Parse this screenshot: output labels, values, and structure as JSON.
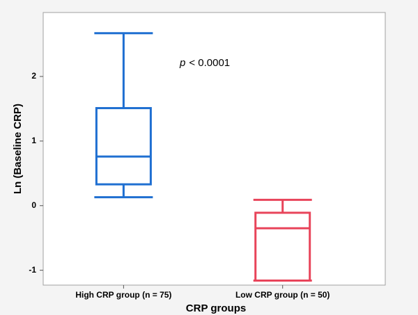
{
  "chart_data": {
    "type": "box",
    "annotation": [
      "p",
      "< 0.0001"
    ],
    "xlabel": "CRP groups",
    "ylabel": "Ln (Baseline CRP)",
    "categories": [
      "High CRP group (n = 75)",
      "Low CRP group (n = 50)"
    ],
    "boxes": [
      {
        "min": 0.13,
        "q1": 0.33,
        "median": 0.76,
        "q3": 1.51,
        "max": 2.67,
        "color": "#1f6fd1"
      },
      {
        "min": -1.16,
        "q1": -1.16,
        "median": -0.35,
        "q3": -0.11,
        "max": 0.09,
        "color": "#e8445a"
      }
    ],
    "ylim": [
      -1.23,
      2.99
    ],
    "yticks": [
      -1,
      0,
      1,
      2
    ]
  }
}
